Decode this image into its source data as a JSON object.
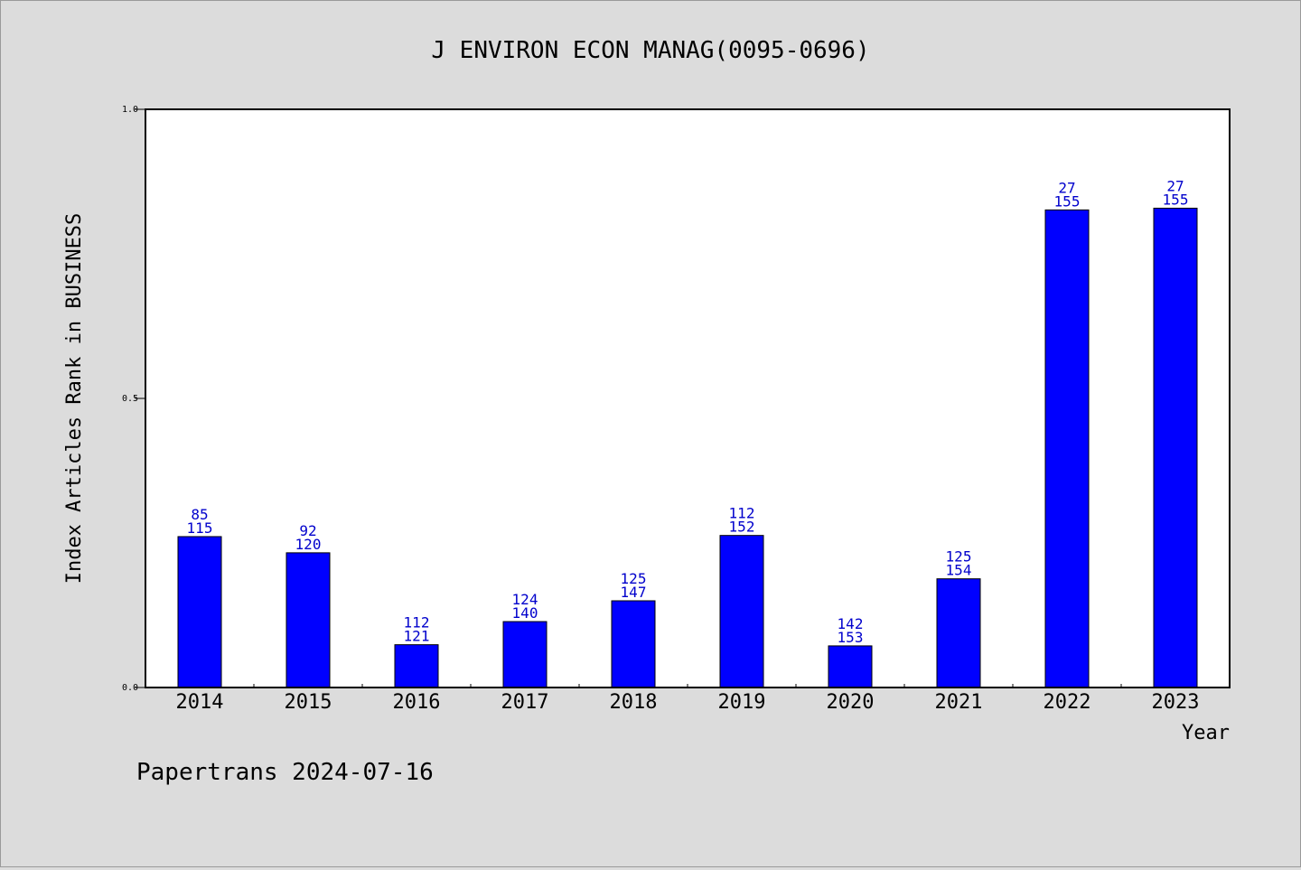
{
  "chart_data": {
    "type": "bar",
    "title": "J ENVIRON ECON MANAG(0095-0696)",
    "xlabel": "Year",
    "ylabel": "Index Articles Rank in BUSINESS",
    "ylim": [
      0,
      1.0
    ],
    "yticks": [
      "0.0",
      "0.5",
      "1.0"
    ],
    "categories": [
      "2014",
      "2015",
      "2016",
      "2017",
      "2018",
      "2019",
      "2020",
      "2021",
      "2022",
      "2023"
    ],
    "values": [
      0.261,
      0.233,
      0.074,
      0.114,
      0.15,
      0.263,
      0.072,
      0.188,
      0.826,
      0.829
    ],
    "labels_top": [
      "85",
      "92",
      "112",
      "124",
      "125",
      "112",
      "142",
      "125",
      "27",
      "27"
    ],
    "labels_bottom": [
      "115",
      "120",
      "121",
      "140",
      "147",
      "152",
      "153",
      "154",
      "155",
      "155"
    ],
    "bar_color": "#0000ff",
    "label_color": "#0000cc",
    "grid": false,
    "legend": "none"
  },
  "footer": {
    "text": "Papertrans 2024-07-16"
  }
}
